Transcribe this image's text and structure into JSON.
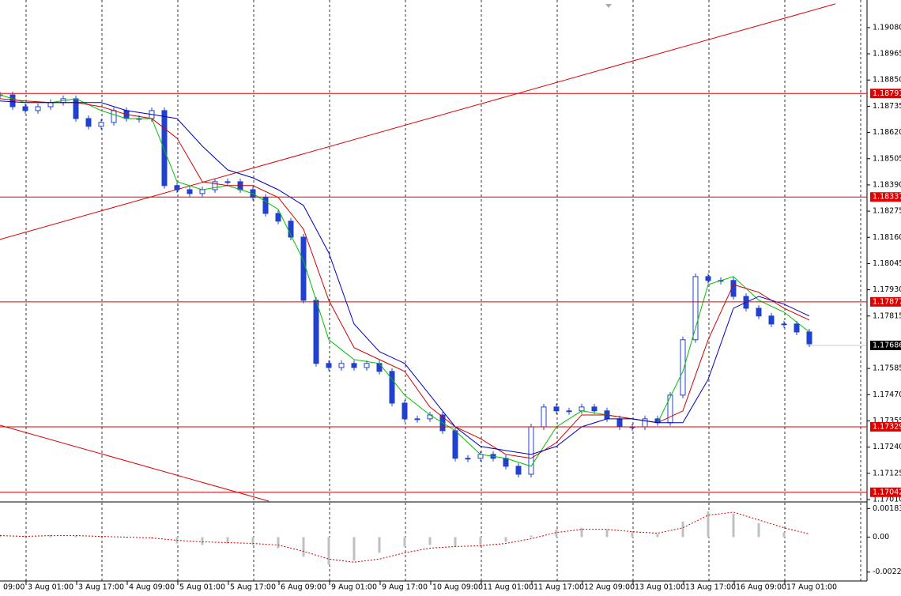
{
  "chart_data": [
    {
      "type": "candlestick",
      "color": "#2040d0",
      "grid": true,
      "ylim": [
        1.17003,
        1.19201
      ],
      "yticks": [
        {
          "value": 1.1908,
          "label": "1.19080"
        },
        1.18965,
        {
          "value": 1.1885,
          "label": "1.18850"
        },
        1.18735,
        {
          "value": 1.1862,
          "label": "1.18620"
        },
        1.18505,
        {
          "value": 1.1839,
          "label": "1.18390"
        },
        1.18275,
        {
          "value": 1.1816,
          "label": "1.18160"
        },
        1.18045,
        {
          "value": 1.1793,
          "label": "1.17930"
        },
        1.17815,
        1.17585,
        {
          "value": 1.1747,
          "label": "1.17470"
        },
        1.17355,
        {
          "value": 1.1724,
          "label": "1.17240"
        },
        1.17125,
        {
          "value": 1.1701,
          "label": "1.17010"
        }
      ],
      "x_labels": [
        "09:00",
        "3 Aug 01:00",
        "3 Aug 17:00",
        "4 Aug 09:00",
        "5 Aug 01:00",
        "5 Aug 17:00",
        "6 Aug 09:00",
        "9 Aug 01:00",
        "9 Aug 17:00",
        "10 Aug 09:00",
        "11 Aug 01:00",
        "11 Aug 17:00",
        "12 Aug 09:00",
        "13 Aug 01:00",
        "13 Aug 17:00",
        "16 Aug 09:00",
        "17 Aug 01:00"
      ],
      "values": [
        1.18785,
        1.18733,
        1.18716,
        1.18733,
        1.18751,
        1.18768,
        1.18681,
        1.18647,
        1.18664,
        1.18716,
        1.18681,
        1.18681,
        1.18716,
        1.18387,
        1.18369,
        1.18352,
        1.18369,
        1.18404,
        1.18404,
        1.18369,
        1.18335,
        1.18265,
        1.18231,
        1.18161,
        1.17884,
        1.17607,
        1.17589,
        1.17607,
        1.17589,
        1.17607,
        1.17572,
        1.17433,
        1.17364,
        1.17364,
        1.17381,
        1.17312,
        1.17191,
        1.17191,
        1.17208,
        1.17191,
        1.17156,
        1.17121,
        1.17329,
        1.17416,
        1.17399,
        1.17399,
        1.17416,
        1.17399,
        1.17364,
        1.17329,
        1.17329,
        1.17364,
        1.17347,
        1.17468,
        1.17711,
        1.17988,
        1.17971,
        1.17971,
        1.17901,
        1.17849,
        1.17815,
        1.1778,
        1.1778,
        1.17745,
        1.17693
      ],
      "series": [
        {
          "color": "#00c000",
          "values": [
            1.18785,
            1.18751,
            1.18751,
            1.18768,
            1.18716,
            1.18681,
            1.18681,
            1.18404,
            1.18369,
            1.18387,
            1.18352,
            1.18283,
            1.18057,
            1.17711,
            1.17624,
            1.17607,
            1.17468,
            1.17381,
            1.17312,
            1.17208,
            1.17191,
            1.17156,
            1.17329,
            1.17399,
            1.17381,
            1.17364,
            1.17347,
            1.17572,
            1.17953,
            1.17988,
            1.17884,
            1.17832,
            1.17745
          ]
        },
        {
          "color": "#d00000",
          "values": [
            1.18768,
            1.18758,
            1.18751,
            1.18751,
            1.18733,
            1.18699,
            1.18681,
            1.18595,
            1.18404,
            1.18387,
            1.18387,
            1.18335,
            1.18196,
            1.17884,
            1.17676,
            1.17624,
            1.17572,
            1.17416,
            1.17329,
            1.17277,
            1.17208,
            1.17191,
            1.1726,
            1.17381,
            1.17381,
            1.17364,
            1.17347,
            1.17399,
            1.17711,
            1.17953,
            1.17919,
            1.17849,
            1.17797
          ]
        },
        {
          "color": "#0000c0",
          "values": [
            1.18758,
            1.18751,
            1.18751,
            1.18751,
            1.18751,
            1.18716,
            1.18699,
            1.18681,
            1.1856,
            1.18456,
            1.18421,
            1.18369,
            1.183,
            1.18092,
            1.1778,
            1.17659,
            1.17607,
            1.17468,
            1.17329,
            1.17243,
            1.17225,
            1.17208,
            1.17243,
            1.17329,
            1.17364,
            1.17364,
            1.17347,
            1.17347,
            1.17537,
            1.17849,
            1.17901,
            1.17867,
            1.17815
          ]
        }
      ],
      "levels": [
        1.18791,
        1.18337,
        1.17877,
        1.17329,
        1.17042
      ],
      "level_color": "#e00000",
      "last_price": 1.17686,
      "trendlines": [
        [
          1.18151,
          1.19184
        ],
        [
          1.17336,
          1.17003
        ]
      ]
    },
    {
      "type": "macd",
      "ylim": [
        -0.00275,
        0.00215
      ],
      "yticks": [
        0.001832,
        {
          "value": 0,
          "label": "0.00"
        },
        {
          "value": -0.00223,
          "label": "-0.002230"
        }
      ],
      "series": [
        {
          "color": "#c0c0c0",
          "values": [
            0.00015,
            0.0001,
            0.00015,
            0.0001,
            5e-05,
            -5e-05,
            -0.0001,
            -0.0004,
            -0.0005,
            -0.0004,
            -0.0005,
            -0.0007,
            -0.00125,
            -0.00175,
            -0.0015,
            -0.001,
            -0.0006,
            -0.0005,
            -0.0006,
            -0.0005,
            -0.0003,
            0.0001,
            0.0005,
            0.0006,
            0.0005,
            0.0003,
            0.0002,
            0.001,
            0.00165,
            0.0015,
            0.0009,
            0.0003,
            0
          ]
        },
        {
          "color": "#d00000",
          "values": [
            0.0001,
            5e-05,
            0.0001,
            0.0001,
            5e-05,
            0,
            -5e-05,
            -0.0002,
            -0.0003,
            -0.00035,
            -0.0004,
            -0.0005,
            -0.0009,
            -0.0014,
            -0.0016,
            -0.0014,
            -0.001,
            -0.0007,
            -0.0006,
            -0.00055,
            -0.0004,
            -0.0001,
            0.0003,
            0.0005,
            0.0005,
            0.00035,
            0.00025,
            0.0006,
            0.0014,
            0.0016,
            0.0011,
            0.0006,
            0.0002
          ]
        }
      ]
    }
  ]
}
